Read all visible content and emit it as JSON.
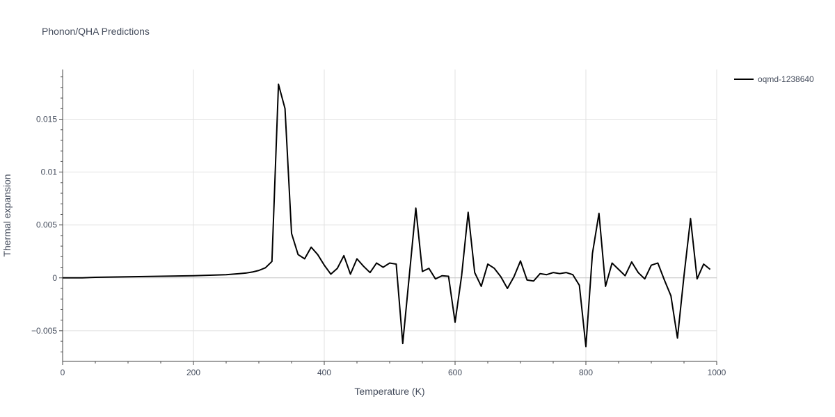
{
  "chart_data": {
    "type": "line",
    "title": "Phonon/QHA Predictions",
    "xlabel": "Temperature (K)",
    "ylabel": "Thermal expansion",
    "xlim": [
      0,
      1000
    ],
    "ylim": [
      -0.0079,
      0.0197
    ],
    "x_ticks": [
      0,
      200,
      400,
      600,
      800,
      1000
    ],
    "x_tick_labels": [
      "0",
      "200",
      "400",
      "600",
      "800",
      "1000"
    ],
    "y_ticks": [
      -0.005,
      0,
      0.005,
      0.01,
      0.015
    ],
    "y_tick_labels": [
      "−0.005",
      "0",
      "0.005",
      "0.01",
      "0.015"
    ],
    "grid": true,
    "legend_position": "top-right",
    "series": [
      {
        "name": "oqmd-1238640",
        "color": "#000000",
        "x": [
          0,
          30,
          50,
          100,
          150,
          200,
          250,
          270,
          280,
          290,
          300,
          310,
          320,
          330,
          340,
          350,
          360,
          370,
          380,
          390,
          400,
          410,
          420,
          430,
          440,
          450,
          460,
          470,
          480,
          490,
          500,
          510,
          520,
          530,
          540,
          550,
          560,
          570,
          580,
          590,
          600,
          610,
          620,
          630,
          640,
          650,
          660,
          670,
          680,
          690,
          700,
          710,
          720,
          730,
          740,
          750,
          760,
          770,
          780,
          790,
          800,
          810,
          820,
          830,
          840,
          850,
          860,
          870,
          880,
          890,
          900,
          910,
          920,
          930,
          940,
          950,
          960,
          970,
          980,
          990
        ],
        "y": [
          0,
          0,
          5e-05,
          0.0001,
          0.00015,
          0.0002,
          0.0003,
          0.0004,
          0.00045,
          0.00055,
          0.0007,
          0.00095,
          0.00155,
          0.0183,
          0.016,
          0.0042,
          0.0022,
          0.0018,
          0.0029,
          0.0022,
          0.0012,
          0.00035,
          0.0009,
          0.0021,
          0.00035,
          0.0018,
          0.0011,
          0.0005,
          0.0014,
          0.001,
          0.0014,
          0.0013,
          -0.0062,
          0.0002,
          0.0066,
          0.0006,
          0.0009,
          -0.0001,
          0.0002,
          0.00015,
          -0.0042,
          0.0002,
          0.0062,
          0.0005,
          -0.0008,
          0.0013,
          0.0009,
          0.0001,
          -0.001,
          0.0001,
          0.0016,
          -0.0002,
          -0.0003,
          0.0004,
          0.0003,
          0.0005,
          0.0004,
          0.0005,
          0.0003,
          -0.0007,
          -0.0065,
          0.0023,
          0.0061,
          -0.0008,
          0.0014,
          0.0008,
          0.0002,
          0.0015,
          0.0005,
          -0.0001,
          0.0012,
          0.0014,
          -0.0002,
          -0.0017,
          -0.0057,
          0.0002,
          0.0056,
          -0.0001,
          0.0013,
          0.0008
        ]
      }
    ]
  }
}
